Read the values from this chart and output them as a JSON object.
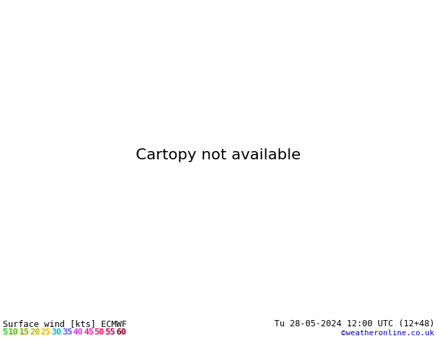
{
  "title_left": "Surface wind [kts] ECMWF",
  "title_right": "Tu 28-05-2024 12:00 UTC (12+48)",
  "copyright": "©weatheronline.co.uk",
  "legend_values": [
    5,
    10,
    15,
    20,
    25,
    30,
    35,
    40,
    45,
    50,
    55,
    60
  ],
  "text_colors": [
    "#00dd00",
    "#55bb00",
    "#88aa00",
    "#bbbb00",
    "#ddbb00",
    "#00bbdd",
    "#6655ee",
    "#cc44dd",
    "#ee2299",
    "#ff1166",
    "#cc0044",
    "#880022"
  ],
  "wind_colors": [
    "#00ff00",
    "#33ee00",
    "#66dd00",
    "#99cc00",
    "#cccc00",
    "#ffee00",
    "#00ccff",
    "#3399ff",
    "#9966ff",
    "#ff55ee",
    "#ff2299",
    "#ff0055",
    "#cc0022"
  ],
  "sea_color": "#aaddff",
  "bg_color": "#ffffff",
  "figsize": [
    6.34,
    4.9
  ],
  "dpi": 100,
  "extent": [
    0,
    40,
    54,
    72
  ],
  "wind_bounds": [
    0,
    5,
    10,
    15,
    20,
    25,
    30,
    35,
    40,
    45,
    50,
    55,
    60,
    65
  ]
}
